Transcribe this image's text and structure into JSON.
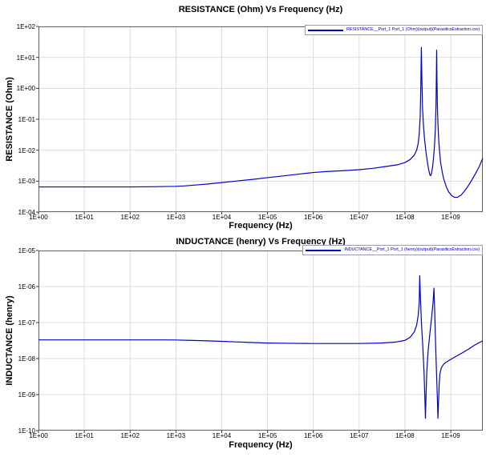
{
  "colors": {
    "curve": "#0000cc",
    "grid": "#dcdcdc",
    "axis": "#606060",
    "tick": "#333333",
    "background": "#ffffff",
    "legend_border": "#9a9ab0"
  },
  "chart_data": [
    {
      "type": "line",
      "title": "RESISTANCE (Ohm) Vs Frequency (Hz)",
      "xlabel": "Frequency (Hz)",
      "ylabel": "RESISTANCE (Ohm)",
      "xscale": "log",
      "yscale": "log",
      "xlim": [
        1,
        5000000000.0
      ],
      "ylim": [
        0.0001,
        100.0
      ],
      "grid": true,
      "legend_position": "top-right",
      "x_tick_labels": [
        "1E+00",
        "1E+01",
        "1E+02",
        "1E+03",
        "1E+04",
        "1E+05",
        "1E+06",
        "1E+07",
        "1E+08",
        "1E+09"
      ],
      "y_tick_labels": [
        "1E+02",
        "1E+01",
        "1E+00",
        "1E-01",
        "1E-02",
        "1E-03",
        "1E-04"
      ],
      "series": [
        {
          "id": "resistance-curve",
          "name": "RESISTANCE__Port_1 Port_1 (Ohm)(output)(ParasiticsExtraction.csv)",
          "color": "#0000cc",
          "points": [
            [
              1,
              0.00065
            ],
            [
              3,
              0.00065
            ],
            [
              10,
              0.00065
            ],
            [
              30,
              0.00065
            ],
            [
              100,
              0.00065
            ],
            [
              300,
              0.00066
            ],
            [
              1000,
              0.00068
            ],
            [
              1500,
              0.0007
            ],
            [
              3000,
              0.00076
            ],
            [
              5000,
              0.00081
            ],
            [
              10000.0,
              0.0009
            ],
            [
              20000.0,
              0.001
            ],
            [
              50000.0,
              0.00115
            ],
            [
              100000.0,
              0.0013
            ],
            [
              200000.0,
              0.00145
            ],
            [
              500000.0,
              0.0017
            ],
            [
              1000000.0,
              0.0019
            ],
            [
              2000000.0,
              0.00205
            ],
            [
              5000000.0,
              0.0022
            ],
            [
              10000000.0,
              0.00235
            ],
            [
              20000000.0,
              0.0026
            ],
            [
              40000000.0,
              0.003
            ],
            [
              70000000.0,
              0.0034
            ],
            [
              100000000.0,
              0.004
            ],
            [
              130000000.0,
              0.005
            ],
            [
              160000000.0,
              0.007
            ],
            [
              180000000.0,
              0.01
            ],
            [
              195000000.0,
              0.017
            ],
            [
              205000000.0,
              0.035
            ],
            [
              215000000.0,
              0.12
            ],
            [
              222000000.0,
              1.2
            ],
            [
              228000000.0,
              21.0
            ],
            [
              235000000.0,
              1.5
            ],
            [
              242000000.0,
              0.22
            ],
            [
              255000000.0,
              0.055
            ],
            [
              270000000.0,
              0.02
            ],
            [
              290000000.0,
              0.008
            ],
            [
              310000000.0,
              0.004
            ],
            [
              330000000.0,
              0.0023
            ],
            [
              350000000.0,
              0.0016
            ],
            [
              365000000.0,
              0.0015
            ],
            [
              380000000.0,
              0.0018
            ],
            [
              400000000.0,
              0.0028
            ],
            [
              420000000.0,
              0.0055
            ],
            [
              440000000.0,
              0.013
            ],
            [
              460000000.0,
              0.045
            ],
            [
              475000000.0,
              0.25
            ],
            [
              485000000.0,
              2.5
            ],
            [
              492000000.0,
              17.0
            ],
            [
              500000000.0,
              2.0
            ],
            [
              510000000.0,
              0.3
            ],
            [
              525000000.0,
              0.07
            ],
            [
              545000000.0,
              0.022
            ],
            [
              570000000.0,
              0.009
            ],
            [
              600000000.0,
              0.004
            ],
            [
              650000000.0,
              0.002
            ],
            [
              700000000.0,
              0.0012
            ],
            [
              800000000.0,
              0.00065
            ],
            [
              900000000.0,
              0.00045
            ],
            [
              1050000000.0,
              0.00034
            ],
            [
              1200000000.0,
              0.0003
            ],
            [
              1400000000.0,
              0.0003
            ],
            [
              1700000000.0,
              0.00036
            ],
            [
              2000000000.0,
              0.00048
            ],
            [
              2400000000.0,
              0.0007
            ],
            [
              2900000000.0,
              0.0011
            ],
            [
              3500000000.0,
              0.0018
            ],
            [
              4200000000.0,
              0.003
            ],
            [
              5000000000.0,
              0.0055
            ]
          ]
        }
      ]
    },
    {
      "type": "line",
      "title": "INDUCTANCE (henry) Vs Frequency (Hz)",
      "xlabel": "Frequency (Hz)",
      "ylabel": "INDUCTANCE (henry)",
      "xscale": "log",
      "yscale": "log",
      "xlim": [
        1,
        5000000000.0
      ],
      "ylim": [
        1e-10,
        1e-05
      ],
      "grid": true,
      "legend_position": "top-right",
      "x_tick_labels": [
        "1E+00",
        "1E+01",
        "1E+02",
        "1E+03",
        "1E+04",
        "1E+05",
        "1E+06",
        "1E+07",
        "1E+08",
        "1E+09"
      ],
      "y_tick_labels": [
        "1E-05",
        "1E-06",
        "1E-07",
        "1E-08",
        "1E-09",
        "1E-10"
      ],
      "series": [
        {
          "id": "inductance-curve",
          "name": "INDUCTANCE__Port_1 Port_1 (henry)(output)(ParasiticsExtraction.csv)",
          "color": "#0000cc",
          "points": [
            [
              1,
              3.3e-08
            ],
            [
              10,
              3.3e-08
            ],
            [
              100,
              3.3e-08
            ],
            [
              500,
              3.3e-08
            ],
            [
              1000.0,
              3.28e-08
            ],
            [
              2000.0,
              3.2e-08
            ],
            [
              5000.0,
              3.1e-08
            ],
            [
              10000.0,
              3e-08
            ],
            [
              20000.0,
              2.9e-08
            ],
            [
              50000.0,
              2.78e-08
            ],
            [
              100000.0,
              2.7e-08
            ],
            [
              300000.0,
              2.65e-08
            ],
            [
              1000000.0,
              2.62e-08
            ],
            [
              10000000.0,
              2.62e-08
            ],
            [
              30000000.0,
              2.7e-08
            ],
            [
              60000000.0,
              2.85e-08
            ],
            [
              100000000.0,
              3.2e-08
            ],
            [
              130000000.0,
              3.9e-08
            ],
            [
              160000000.0,
              5.5e-08
            ],
            [
              180000000.0,
              8.5e-08
            ],
            [
              195000000.0,
              1.6e-07
            ],
            [
              205000000.0,
              3.8e-07
            ],
            [
              210000000.0,
              2e-06
            ],
            [
              218000000.0,
              4.5e-07
            ],
            [
              230000000.0,
              9e-08
            ],
            [
              245000000.0,
              2.2e-08
            ],
            [
              260000000.0,
              4.5e-09
            ],
            [
              272000000.0,
              8e-10
            ],
            [
              280000000.0,
              2.2e-10
            ],
            [
              288000000.0,
              9e-10
            ],
            [
              300000000.0,
              4.5e-09
            ],
            [
              320000000.0,
              1.6e-08
            ],
            [
              350000000.0,
              5e-08
            ],
            [
              380000000.0,
              1.3e-07
            ],
            [
              410000000.0,
              3.5e-07
            ],
            [
              430000000.0,
              9e-07
            ],
            [
              440000000.0,
              3.5e-07
            ],
            [
              455000000.0,
              8e-08
            ],
            [
              470000000.0,
              1.8e-08
            ],
            [
              490000000.0,
              3.5e-09
            ],
            [
              510000000.0,
              8e-10
            ],
            [
              525000000.0,
              2.2e-10
            ],
            [
              540000000.0,
              6e-10
            ],
            [
              560000000.0,
              2e-09
            ],
            [
              580000000.0,
              3.8e-09
            ],
            [
              620000000.0,
              5.5e-09
            ],
            [
              700000000.0,
              7e-09
            ],
            [
              800000000.0,
              8e-09
            ],
            [
              1000000000.0,
              9.5e-09
            ],
            [
              1300000000.0,
              1.15e-08
            ],
            [
              1800000000.0,
              1.45e-08
            ],
            [
              2400000000.0,
              1.8e-08
            ],
            [
              3200000000.0,
              2.3e-08
            ],
            [
              4000000000.0,
              2.7e-08
            ],
            [
              5000000000.0,
              3.1e-08
            ]
          ]
        }
      ]
    }
  ]
}
